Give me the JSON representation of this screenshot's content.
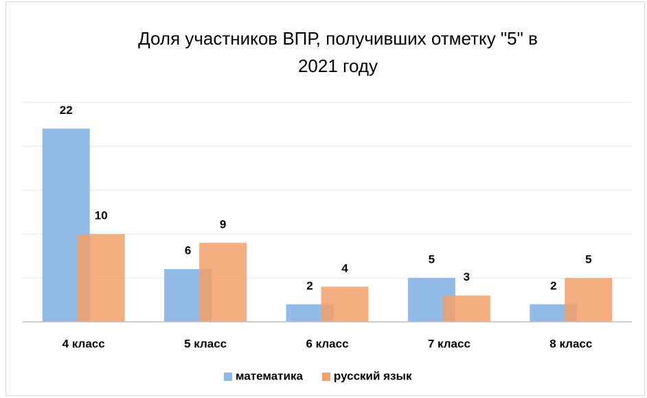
{
  "chart_data": {
    "type": "bar",
    "title": [
      "Доля участников ВПР, получивших отметку \"5\" в",
      "2021 году"
    ],
    "categories": [
      "4 класс",
      "5 класс",
      "6 класс",
      "7 класс",
      "8 класс"
    ],
    "series": [
      {
        "name": "математика",
        "color": "#8cb8e6",
        "values": [
          22,
          6,
          2,
          5,
          2
        ]
      },
      {
        "name": "русский язык",
        "color": "#f2a068",
        "values": [
          10,
          9,
          4,
          3,
          5
        ]
      }
    ],
    "ylim": [
      0,
      25
    ],
    "yticks": [
      0,
      5,
      10,
      15,
      20,
      25
    ],
    "grid": true,
    "legend": "bottom"
  }
}
